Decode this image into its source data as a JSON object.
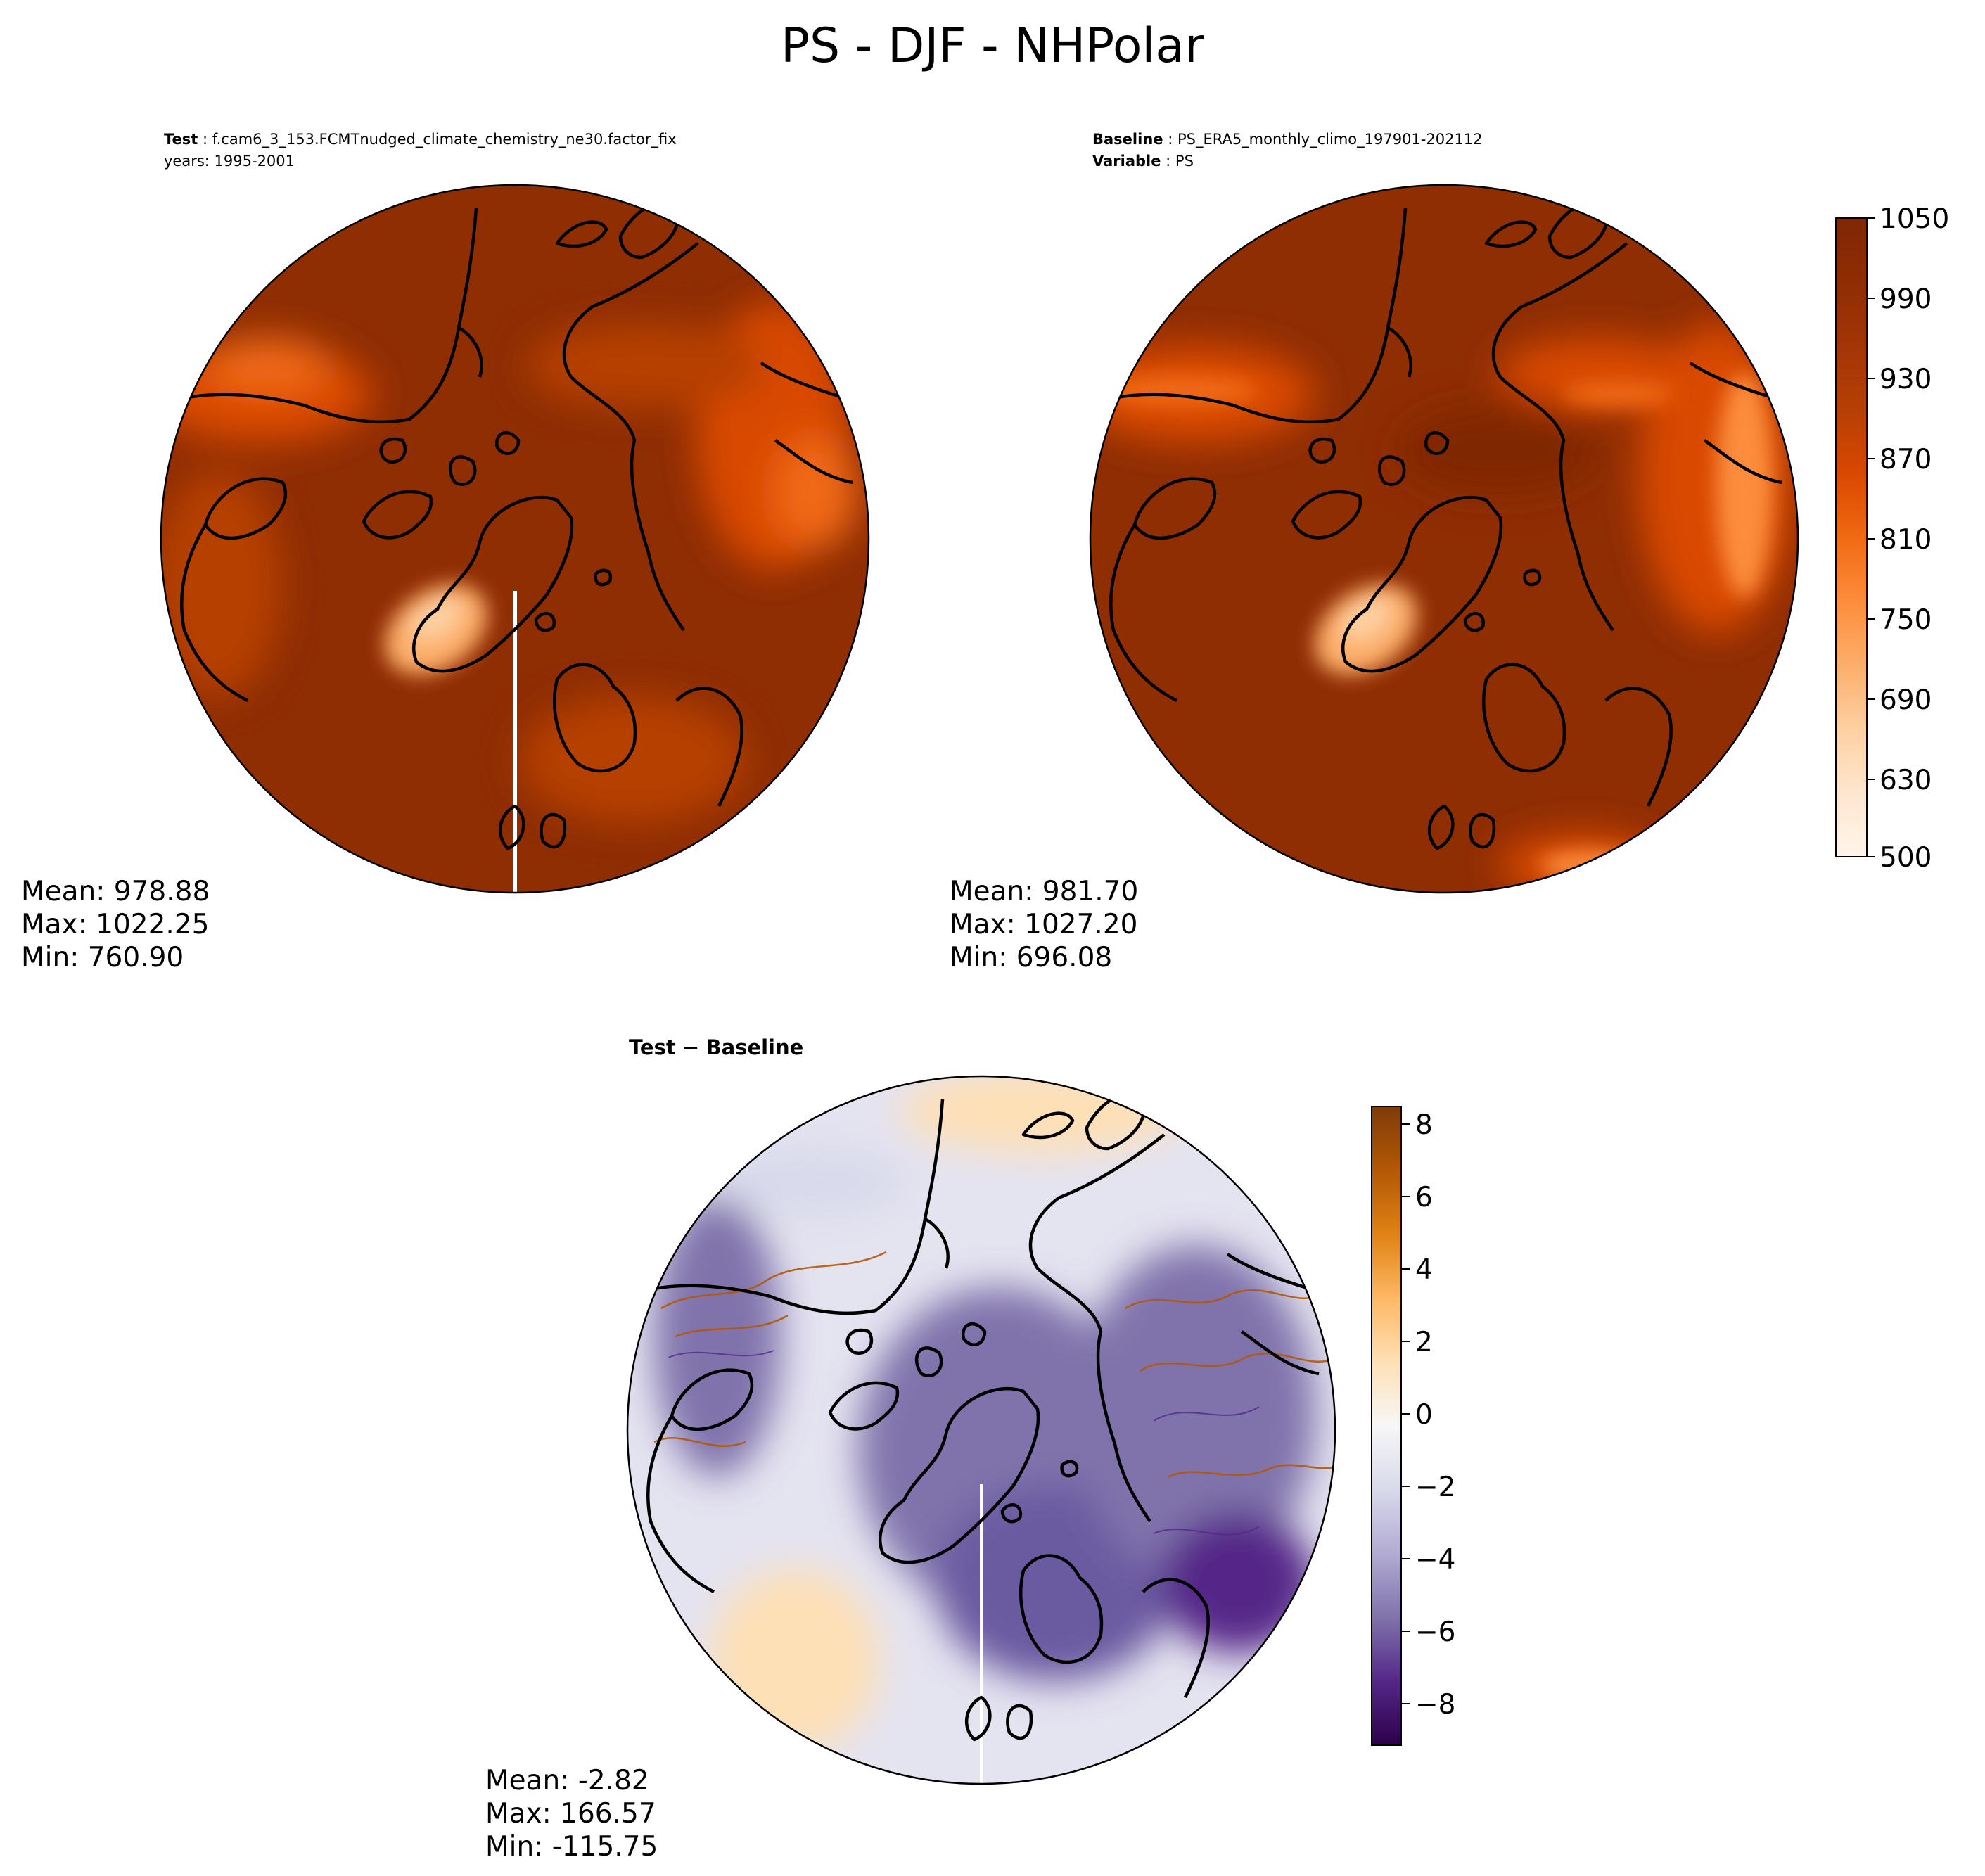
{
  "title": "PS - DJF - NHPolar",
  "colors": {
    "ps_scale": [
      "#fff5eb",
      "#fee6ce",
      "#fdd0a2",
      "#fdae6b",
      "#fd8d3c",
      "#f16913",
      "#d94801",
      "#b63f06",
      "#a33506",
      "#8f2d03",
      "#7f2704"
    ],
    "diff_scale": [
      "#2d004b",
      "#542788",
      "#8073ac",
      "#b2abd2",
      "#d8daeb",
      "#f7f7f7",
      "#fee0b6",
      "#fdb863",
      "#e08214",
      "#b35806",
      "#7f3b08"
    ],
    "coast": "#000000"
  },
  "panels": {
    "test": {
      "label_bold": "Test",
      "label_value": "f.cam6_3_153.FCMTnudged_climate_chemistry_ne30.factor_fix",
      "line2": "years: 1995-2001",
      "stats": {
        "mean": "Mean: 978.88",
        "max": "Max: 1022.25",
        "min": "Min: 760.90"
      }
    },
    "baseline": {
      "label_bold": "Baseline",
      "label_value": "PS_ERA5_monthly_climo_197901-202112",
      "line2_bold": "Variable",
      "line2_value": "PS",
      "stats": {
        "mean": "Mean: 981.70",
        "max": "Max: 1027.20",
        "min": "Min: 696.08"
      }
    },
    "difference": {
      "label_a": "Test",
      "label_op": "−",
      "label_b": "Baseline",
      "stats": {
        "mean": "Mean: -2.82",
        "max": "Max: 166.57",
        "min": "Min: -115.75"
      }
    }
  },
  "colorbars": {
    "ps": {
      "ticks": [
        "1050",
        "990",
        "930",
        "870",
        "810",
        "750",
        "690",
        "630",
        "500"
      ]
    },
    "diff": {
      "ticks": [
        "8",
        "6",
        "4",
        "2",
        "0",
        "−2",
        "−4",
        "−6",
        "−8"
      ]
    }
  }
}
